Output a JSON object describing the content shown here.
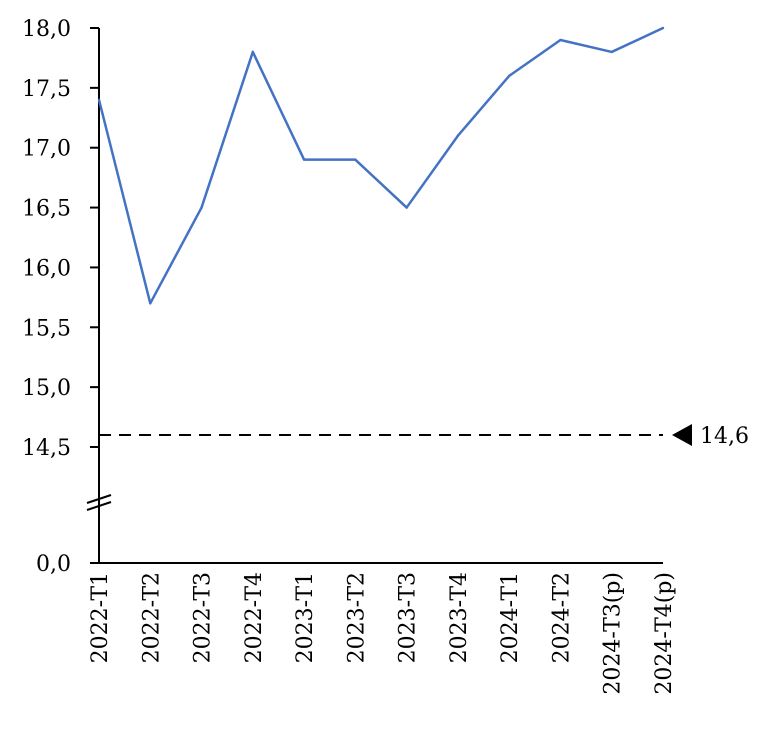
{
  "chart_data": {
    "type": "line",
    "title": "",
    "xlabel": "",
    "ylabel": "",
    "categories": [
      "2022-T1",
      "2022-T2",
      "2022-T3",
      "2022-T4",
      "2023-T1",
      "2023-T2",
      "2023-T3",
      "2023-T4",
      "2024-T1",
      "2024-T2",
      "2024-T3(p)",
      "2024-T4(p)"
    ],
    "series": [
      {
        "values": [
          17.4,
          15.7,
          16.5,
          17.8,
          16.9,
          16.9,
          16.5,
          17.1,
          17.6,
          17.9,
          17.8,
          18.0
        ],
        "color": "#4472C4"
      }
    ],
    "yticks": [
      "18,0",
      "17,5",
      "17,0",
      "16,5",
      "16,0",
      "15,5",
      "15,0",
      "14,5",
      "0,0"
    ],
    "ytick_values": [
      18.0,
      17.5,
      17.0,
      16.5,
      16.0,
      15.5,
      15.0,
      14.5,
      0.0
    ],
    "ylim": [
      14.5,
      18.0
    ],
    "axis_break": true,
    "reference_line": {
      "value": 14.6,
      "label": "14,6",
      "style": "dashed",
      "color": "#000000"
    },
    "grid": false,
    "legend": "none"
  }
}
